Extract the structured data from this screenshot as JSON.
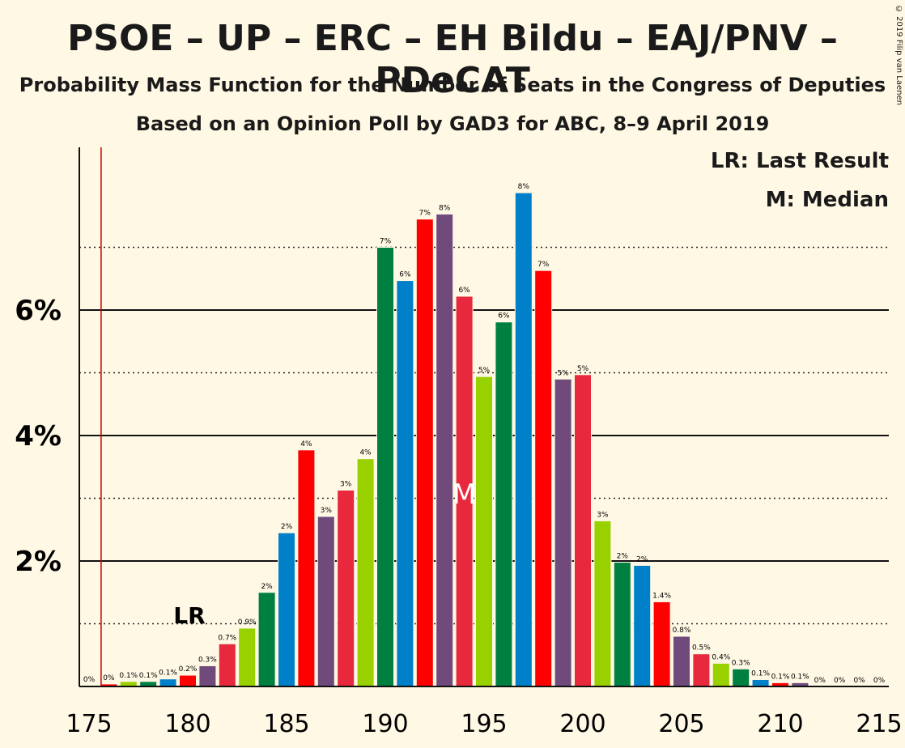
{
  "title": "PSOE – UP – ERC – EH Bildu – EAJ/PNV – PDeCAT",
  "subtitle1": "Probability Mass Function for the Number of Seats in the Congress of Deputies",
  "subtitle2": "Based on an Opinion Poll by GAD3 for ABC, 8–9 April 2019",
  "copyright": "© 2019 Filip van Laenen",
  "legend": {
    "lr": "LR: Last Result",
    "m": "M: Median"
  },
  "markers": {
    "lr_text": "LR",
    "m_text": "M"
  },
  "colors": {
    "background": "#fff8e4",
    "psoe_red": "#ff0000",
    "up_purple": "#6f4a7a",
    "erc_yellowgreen": "#99d000",
    "bildu_green": "#008040",
    "pnv_blue": "#0080c8",
    "pdecat_crimson": "#e8283c",
    "lr_line": "#c00000"
  },
  "chart_data": {
    "type": "bar",
    "xlabel": "",
    "ylabel": "",
    "xlim": [
      175,
      215
    ],
    "ylim": [
      0,
      8.6
    ],
    "x_ticks": [
      "175",
      "180",
      "185",
      "190",
      "195",
      "200",
      "205",
      "210",
      "215"
    ],
    "y_ticks": [
      "2%",
      "4%",
      "6%"
    ],
    "y_solid_grid": [
      2,
      4,
      6
    ],
    "y_dotted_grid": [
      1,
      3,
      5,
      7
    ],
    "last_result": 176,
    "median": 194,
    "bars": [
      {
        "x": 176,
        "value": 0.04,
        "label": "0%",
        "color": "#ff0000"
      },
      {
        "x": 177,
        "value": 0.08,
        "label": "0.1%",
        "color": "#99d000"
      },
      {
        "x": 178,
        "value": 0.08,
        "label": "0.1%",
        "color": "#008040"
      },
      {
        "x": 179,
        "value": 0.12,
        "label": "0.1%",
        "color": "#0080c8"
      },
      {
        "x": 180,
        "value": 0.18,
        "label": "0.2%",
        "color": "#ff0000"
      },
      {
        "x": 181,
        "value": 0.33,
        "label": "0.3%",
        "color": "#6f4a7a"
      },
      {
        "x": 182,
        "value": 0.68,
        "label": "0.7%",
        "color": "#e8283c"
      },
      {
        "x": 183,
        "value": 0.93,
        "label": "0.9%",
        "color": "#99d000"
      },
      {
        "x": 184,
        "value": 1.5,
        "label": "2%",
        "color": "#008040"
      },
      {
        "x": 185,
        "value": 2.45,
        "label": "2%",
        "color": "#0080c8"
      },
      {
        "x": 186,
        "value": 3.77,
        "label": "4%",
        "color": "#ff0000"
      },
      {
        "x": 187,
        "value": 2.71,
        "label": "3%",
        "color": "#6f4a7a"
      },
      {
        "x": 188,
        "value": 3.13,
        "label": "3%",
        "color": "#e8283c"
      },
      {
        "x": 189,
        "value": 3.63,
        "label": "4%",
        "color": "#99d000"
      },
      {
        "x": 190,
        "value": 7.0,
        "label": "7%",
        "color": "#008040"
      },
      {
        "x": 191,
        "value": 6.47,
        "label": "6%",
        "color": "#0080c8"
      },
      {
        "x": 192,
        "value": 7.45,
        "label": "7%",
        "color": "#ff0000"
      },
      {
        "x": 193,
        "value": 7.53,
        "label": "8%",
        "color": "#6f4a7a"
      },
      {
        "x": 194,
        "value": 6.22,
        "label": "6%",
        "color": "#e8283c"
      },
      {
        "x": 195,
        "value": 4.94,
        "label": "5%",
        "color": "#99d000"
      },
      {
        "x": 196,
        "value": 5.81,
        "label": "6%",
        "color": "#008040"
      },
      {
        "x": 197,
        "value": 7.87,
        "label": "8%",
        "color": "#0080c8"
      },
      {
        "x": 198,
        "value": 6.63,
        "label": "7%",
        "color": "#ff0000"
      },
      {
        "x": 199,
        "value": 4.9,
        "label": "5%",
        "color": "#6f4a7a"
      },
      {
        "x": 200,
        "value": 4.97,
        "label": "5%",
        "color": "#e8283c"
      },
      {
        "x": 201,
        "value": 2.64,
        "label": "3%",
        "color": "#99d000"
      },
      {
        "x": 202,
        "value": 1.98,
        "label": "2%",
        "color": "#008040"
      },
      {
        "x": 203,
        "value": 1.93,
        "label": "2%",
        "color": "#0080c8"
      },
      {
        "x": 204,
        "value": 1.35,
        "label": "1.4%",
        "color": "#ff0000"
      },
      {
        "x": 205,
        "value": 0.8,
        "label": "0.8%",
        "color": "#6f4a7a"
      },
      {
        "x": 206,
        "value": 0.52,
        "label": "0.5%",
        "color": "#e8283c"
      },
      {
        "x": 207,
        "value": 0.37,
        "label": "0.4%",
        "color": "#99d000"
      },
      {
        "x": 208,
        "value": 0.28,
        "label": "0.3%",
        "color": "#008040"
      },
      {
        "x": 209,
        "value": 0.11,
        "label": "0.1%",
        "color": "#0080c8"
      },
      {
        "x": 210,
        "value": 0.06,
        "label": "0.1%",
        "color": "#ff0000"
      },
      {
        "x": 211,
        "value": 0.06,
        "label": "0.1%",
        "color": "#6f4a7a"
      },
      {
        "x": 212,
        "value": 0.0,
        "label": "0%",
        "color": "#e8283c"
      },
      {
        "x": 213,
        "value": 0.0,
        "label": "0%",
        "color": "#99d000"
      },
      {
        "x": 214,
        "value": 0.0,
        "label": "0%",
        "color": "#008040"
      },
      {
        "x": 215,
        "value": 0.0,
        "label": "0%",
        "color": "#0080c8"
      }
    ],
    "zero_labels_left": [
      {
        "x": 175,
        "label": "0%"
      }
    ]
  }
}
